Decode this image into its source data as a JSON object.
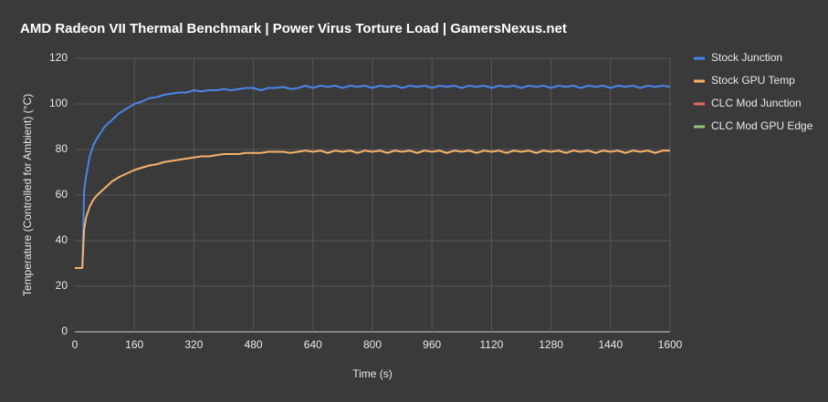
{
  "chart_data": {
    "type": "line",
    "title": "AMD Radeon VII Thermal Benchmark | Power Virus Torture Load | GamersNexus.net",
    "x_label": "Time (s)",
    "y_label": "Temperature (Controlled for Ambient) (°C)",
    "xlim": [
      0,
      1600
    ],
    "xticks": [
      0,
      160,
      320,
      480,
      640,
      800,
      960,
      1120,
      1280,
      1440,
      1600
    ],
    "ylim": [
      0,
      120
    ],
    "yticks": [
      0,
      20,
      40,
      60,
      80,
      100,
      120
    ],
    "grid": true,
    "legend": "right",
    "x": [
      0,
      10,
      20,
      25,
      30,
      40,
      50,
      60,
      80,
      100,
      120,
      140,
      160,
      180,
      200,
      220,
      240,
      260,
      280,
      300,
      320,
      340,
      360,
      380,
      400,
      420,
      440,
      460,
      480,
      500,
      520,
      540,
      560,
      580,
      600,
      620,
      640,
      660,
      680,
      700,
      720,
      740,
      760,
      780,
      800,
      820,
      840,
      860,
      880,
      900,
      920,
      940,
      960,
      980,
      1000,
      1020,
      1040,
      1060,
      1080,
      1100,
      1120,
      1140,
      1160,
      1180,
      1200,
      1220,
      1240,
      1260,
      1280,
      1300,
      1320,
      1340,
      1360,
      1380,
      1400,
      1420,
      1440,
      1460,
      1480,
      1500,
      1520,
      1540,
      1560,
      1580,
      1600
    ],
    "series": [
      {
        "name": "Stock Junction",
        "color": "#4a86e8",
        "values": [
          28,
          28,
          28,
          62,
          68,
          77,
          82,
          85,
          90,
          93,
          96,
          98,
          100,
          101,
          102.5,
          103,
          104,
          104.5,
          105,
          105,
          106,
          105.5,
          106,
          106,
          106.5,
          106,
          106.5,
          107,
          107,
          106,
          107,
          107,
          107.5,
          106.5,
          107,
          108,
          107,
          108,
          107.5,
          108,
          107,
          108,
          107.5,
          108,
          107,
          108,
          107.5,
          108,
          107,
          108,
          107.5,
          108,
          107,
          108,
          107.5,
          108,
          107,
          108,
          107.5,
          108,
          107,
          108,
          107.5,
          108,
          107,
          108,
          107.5,
          108,
          107,
          108,
          107.5,
          108,
          107,
          108,
          107.5,
          108,
          107,
          108,
          107.5,
          108,
          107,
          108,
          107.5,
          108,
          107.5
        ]
      },
      {
        "name": "Stock GPU Temp",
        "color": "#f6b26b",
        "values": [
          28,
          28,
          28,
          45,
          50,
          55,
          58,
          60,
          63,
          66,
          68,
          69.5,
          71,
          72,
          73,
          73.5,
          74.5,
          75,
          75.5,
          76,
          76.5,
          77,
          77,
          77.5,
          78,
          78,
          78,
          78.5,
          78.5,
          78.5,
          79,
          79,
          79,
          78.5,
          79,
          79.5,
          79,
          79.5,
          78.5,
          79.5,
          79,
          79.5,
          78.5,
          79.5,
          79,
          79.5,
          78.5,
          79.5,
          79,
          79.5,
          78.5,
          79.5,
          79,
          79.5,
          78.5,
          79.5,
          79,
          79.5,
          78.5,
          79.5,
          79,
          79.5,
          78.5,
          79.5,
          79,
          79.5,
          78.5,
          79.5,
          79,
          79.5,
          78.5,
          79.5,
          79,
          79.5,
          78.5,
          79.5,
          79,
          79.5,
          78.5,
          79.5,
          79,
          79.5,
          78.5,
          79.5,
          79.5
        ]
      },
      {
        "name": "CLC Mod Junction",
        "color": "#e06666",
        "values": [
          null,
          null,
          null,
          null,
          null,
          null,
          null,
          null,
          null,
          null,
          null,
          null,
          null,
          null,
          null,
          null,
          null,
          null,
          null,
          null,
          null,
          null,
          null,
          null,
          null,
          null,
          null,
          null,
          null,
          null,
          null,
          null,
          null,
          null,
          null,
          null,
          null,
          null,
          null,
          null,
          null,
          null,
          null,
          null,
          null,
          null,
          null,
          null,
          null,
          null,
          null,
          null,
          null,
          null,
          null,
          null,
          null,
          null,
          null,
          null,
          null,
          null,
          null,
          null,
          null,
          null,
          null,
          null,
          null,
          null,
          null,
          null,
          null,
          null,
          null,
          null,
          null,
          null,
          null,
          null,
          null,
          null,
          null,
          null,
          null
        ]
      },
      {
        "name": "CLC Mod GPU Edge",
        "color": "#93c47d",
        "values": [
          null,
          null,
          null,
          null,
          null,
          null,
          null,
          null,
          null,
          null,
          null,
          null,
          null,
          null,
          null,
          null,
          null,
          null,
          null,
          null,
          null,
          null,
          null,
          null,
          null,
          null,
          null,
          null,
          null,
          null,
          null,
          null,
          null,
          null,
          null,
          null,
          null,
          null,
          null,
          null,
          null,
          null,
          null,
          null,
          null,
          null,
          null,
          null,
          null,
          null,
          null,
          null,
          null,
          null,
          null,
          null,
          null,
          null,
          null,
          null,
          null,
          null,
          null,
          null,
          null,
          null,
          null,
          null,
          null,
          null,
          null,
          null,
          null,
          null,
          null,
          null,
          null,
          null,
          null,
          null,
          null,
          null,
          null,
          null,
          null
        ]
      }
    ]
  }
}
